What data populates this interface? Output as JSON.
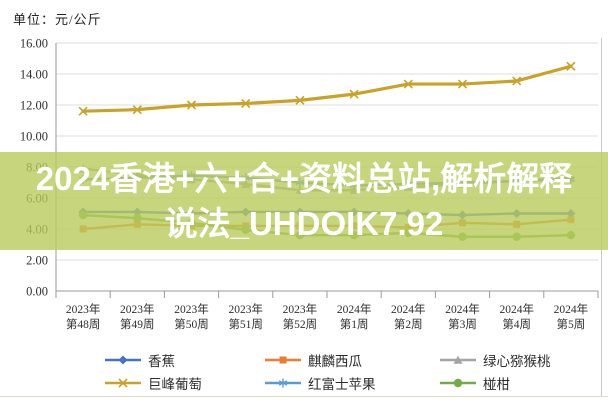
{
  "header": {
    "unit_label": "单位：元/公斤"
  },
  "overlay_banner": {
    "line1": "2024香港+六+合+资料总站,解析解释",
    "line2": "说法_UHDOIK7.92",
    "background": "#B9CA5C",
    "text_color": "#FFFFFF"
  },
  "chart_data": {
    "type": "line",
    "title": "",
    "xlabel": "",
    "ylabel": "元/公斤",
    "ylim": [
      0,
      16
    ],
    "ytick_step": 2,
    "ytick_format_decimals": 2,
    "grid": "horizontal",
    "legend_position": "bottom",
    "axis_color": "#9a9a9a",
    "gridline_color": "#dcdcdc",
    "label_color": "#303030",
    "categories": [
      {
        "line1": "2023年",
        "line2": "第48周"
      },
      {
        "line1": "2023年",
        "line2": "第49周"
      },
      {
        "line1": "2023年",
        "line2": "第50周"
      },
      {
        "line1": "2023年",
        "line2": "第51周"
      },
      {
        "line1": "2023年",
        "line2": "第52周"
      },
      {
        "line1": "2024年",
        "line2": "第1周"
      },
      {
        "line1": "2024年",
        "line2": "第2周"
      },
      {
        "line1": "2024年",
        "line2": "第3周"
      },
      {
        "line1": "2024年",
        "line2": "第4周"
      },
      {
        "line1": "2024年",
        "line2": "第5周"
      }
    ],
    "series": [
      {
        "key": "banana",
        "name": "香蕉",
        "color": "#4472C4",
        "marker": "diamond",
        "values": [
          5.1,
          5.1,
          5.0,
          5.1,
          5.1,
          5.1,
          5.0,
          4.9,
          5.0,
          5.0
        ]
      },
      {
        "key": "watermelon",
        "name": "麒麟西瓜",
        "color": "#ED7D31",
        "marker": "square",
        "values": [
          4.0,
          4.3,
          4.2,
          4.2,
          4.2,
          4.2,
          4.1,
          4.4,
          4.3,
          4.6
        ]
      },
      {
        "key": "kiwi",
        "name": "绿心猕猴桃",
        "color": "#A5A5A5",
        "marker": "triangle",
        "values": [
          7.9,
          7.5,
          7.2,
          6.9,
          6.5,
          6.5,
          6.7,
          6.9,
          7.1,
          7.3
        ]
      },
      {
        "key": "grape",
        "name": "巨峰葡萄",
        "color": "#C9A227",
        "marker": "x",
        "values": [
          11.6,
          11.7,
          12.0,
          12.1,
          12.3,
          12.7,
          13.35,
          13.35,
          13.55,
          14.5
        ]
      },
      {
        "key": "apple",
        "name": "红富士苹果",
        "color": "#5B9BD5",
        "marker": "asterisk",
        "values": [
          7.2,
          7.3,
          7.45,
          7.3,
          7.0,
          6.8,
          6.9,
          7.0,
          7.1,
          7.2
        ]
      },
      {
        "key": "mandarin",
        "name": "椪柑",
        "color": "#70AD47",
        "marker": "circle",
        "values": [
          4.9,
          4.7,
          4.4,
          3.95,
          3.6,
          3.6,
          3.75,
          3.5,
          3.5,
          3.6
        ]
      }
    ]
  }
}
